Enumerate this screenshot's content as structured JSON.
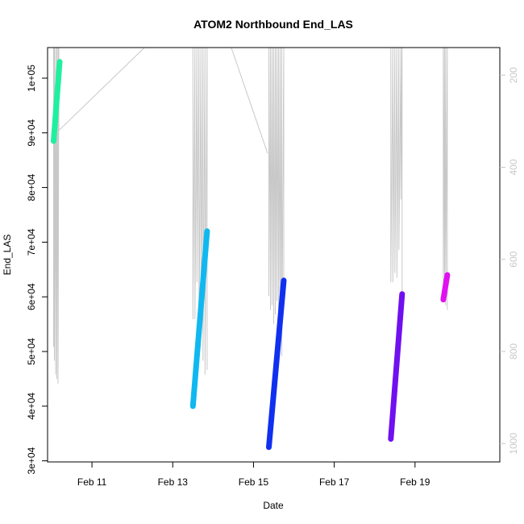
{
  "chart_data": {
    "type": "line",
    "title": "ATOM2 Northbound End_LAS",
    "xlabel": "Date",
    "ylabel": "End_LAS",
    "x_ticks": [
      "Feb 11",
      "Feb 13",
      "Feb 15",
      "Feb 17",
      "Feb 19"
    ],
    "x_tick_days": [
      11,
      13,
      15,
      17,
      19
    ],
    "xlim": [
      9.9,
      21.1
    ],
    "y_ticks": [
      "3e+04",
      "4e+04",
      "5e+04",
      "6e+04",
      "7e+04",
      "8e+04",
      "9e+04",
      "1e+05"
    ],
    "y_tick_values": [
      30000,
      40000,
      50000,
      60000,
      70000,
      80000,
      90000,
      100000
    ],
    "ylim": [
      29800,
      105600
    ],
    "y2_ticks": [
      "200",
      "400",
      "600",
      "800",
      "1000"
    ],
    "y2_tick_values": [
      200,
      400,
      600,
      800,
      1000
    ],
    "y2lim": [
      1040,
      140
    ],
    "y2_color": "#c8c8c8",
    "series": [
      {
        "color": "#1ff0a0",
        "x": [
          10.05,
          10.2
        ],
        "y": [
          88500,
          103000
        ]
      },
      {
        "color": "#10b8f0",
        "x": [
          13.5,
          13.85
        ],
        "y": [
          40000,
          72000
        ]
      },
      {
        "color": "#1030f0",
        "x": [
          15.38,
          15.75
        ],
        "y": [
          32500,
          63000
        ]
      },
      {
        "color": "#7010f0",
        "x": [
          18.4,
          18.68
        ],
        "y": [
          34000,
          60500
        ]
      },
      {
        "color": "#e010f0",
        "x": [
          19.7,
          19.8
        ],
        "y": [
          59500,
          64000
        ]
      }
    ],
    "secondary_color": "#c8c8c8",
    "secondary_lines": [
      {
        "x": [
          10.05,
          10.05,
          10.07,
          10.07,
          10.1,
          10.1,
          10.13,
          10.13,
          10.16,
          10.16,
          10.18,
          10.18,
          12.3,
          12.3
        ],
        "y2": [
          140,
          790,
          140,
          820,
          140,
          850,
          140,
          860,
          140,
          870,
          140,
          320,
          140,
          140
        ]
      },
      {
        "x": [
          13.5,
          13.5,
          13.55,
          13.55,
          13.6,
          13.6,
          13.65,
          13.65,
          13.7,
          13.7,
          13.75,
          13.75,
          13.8,
          13.8,
          13.85,
          13.85
        ],
        "y2": [
          140,
          730,
          140,
          730,
          140,
          650,
          140,
          780,
          140,
          760,
          140,
          820,
          140,
          850,
          140,
          840
        ]
      },
      {
        "x": [
          14.45,
          15.35
        ],
        "y2": [
          140,
          370
        ]
      },
      {
        "x": [
          15.38,
          15.38,
          15.42,
          15.42,
          15.46,
          15.46,
          15.5,
          15.5,
          15.54,
          15.54,
          15.58,
          15.58,
          15.62,
          15.62,
          15.66,
          15.66,
          15.7,
          15.7,
          15.75,
          15.75
        ],
        "y2": [
          140,
          680,
          140,
          710,
          140,
          700,
          140,
          740,
          140,
          720,
          140,
          690,
          140,
          770,
          140,
          780,
          140,
          810,
          140,
          700
        ]
      },
      {
        "x": [
          18.4,
          18.4,
          18.45,
          18.45,
          18.5,
          18.5,
          18.55,
          18.55,
          18.6,
          18.6,
          18.65,
          18.65,
          18.68,
          18.68
        ],
        "y2": [
          140,
          650,
          140,
          650,
          140,
          630,
          140,
          640,
          140,
          580,
          140,
          470,
          140,
          700
        ]
      },
      {
        "x": [
          19.7,
          19.7,
          19.73,
          19.73,
          19.76,
          19.76,
          19.8,
          19.8
        ],
        "y2": [
          140,
          650,
          140,
          670,
          140,
          700,
          140,
          710
        ]
      }
    ]
  }
}
